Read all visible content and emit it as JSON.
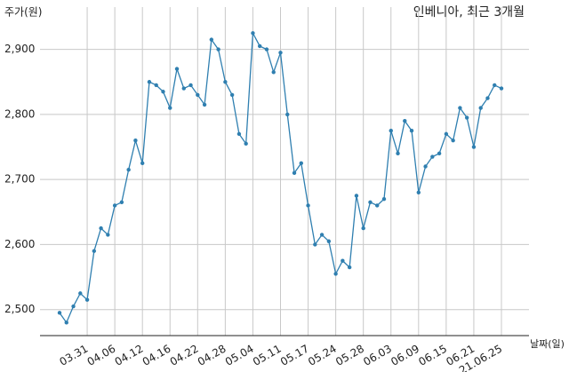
{
  "chart_data": {
    "type": "line",
    "title": "인베니아, 최근 3개월",
    "y_label": "주가(원)",
    "x_label": "날짜(일)",
    "categories": [
      null,
      null,
      null,
      null,
      "03.31",
      null,
      null,
      null,
      "04.06",
      null,
      null,
      null,
      "04.12",
      null,
      null,
      null,
      "04.16",
      null,
      null,
      null,
      "04.22",
      null,
      null,
      null,
      "04.28",
      null,
      null,
      null,
      "05.04",
      null,
      null,
      null,
      "05.11",
      null,
      null,
      null,
      "05.17",
      null,
      null,
      null,
      "05.24",
      null,
      null,
      null,
      "05.28",
      null,
      null,
      null,
      "06.03",
      null,
      null,
      null,
      "06.09",
      null,
      null,
      null,
      "06.15",
      null,
      null,
      null,
      "06.21",
      null,
      null,
      null,
      "21.06.25"
    ],
    "series": [
      {
        "name": "인베니아",
        "color": "#2f7fb0",
        "values": [
          2495,
          2480,
          2505,
          2525,
          2515,
          2590,
          2625,
          2615,
          2660,
          2665,
          2715,
          2760,
          2725,
          2850,
          2845,
          2835,
          2810,
          2870,
          2840,
          2845,
          2830,
          2815,
          2915,
          2900,
          2850,
          2830,
          2770,
          2755,
          2925,
          2905,
          2900,
          2865,
          2895,
          2800,
          2710,
          2725,
          2660,
          2600,
          2615,
          2605,
          2555,
          2575,
          2565,
          2675,
          2625,
          2665,
          2660,
          2670,
          2775,
          2740,
          2790,
          2775,
          2680,
          2720,
          2735,
          2740,
          2770,
          2760,
          2810,
          2795,
          2750,
          2810,
          2825,
          2845,
          2840
        ]
      }
    ],
    "ylim": [
      2460,
      2965
    ],
    "yticks": [
      {
        "value": 2500,
        "label": "2,500"
      },
      {
        "value": 2600,
        "label": "2,600"
      },
      {
        "value": 2700,
        "label": "2,700"
      },
      {
        "value": 2800,
        "label": "2,800"
      },
      {
        "value": 2900,
        "label": "2,900"
      }
    ],
    "grid": true
  }
}
